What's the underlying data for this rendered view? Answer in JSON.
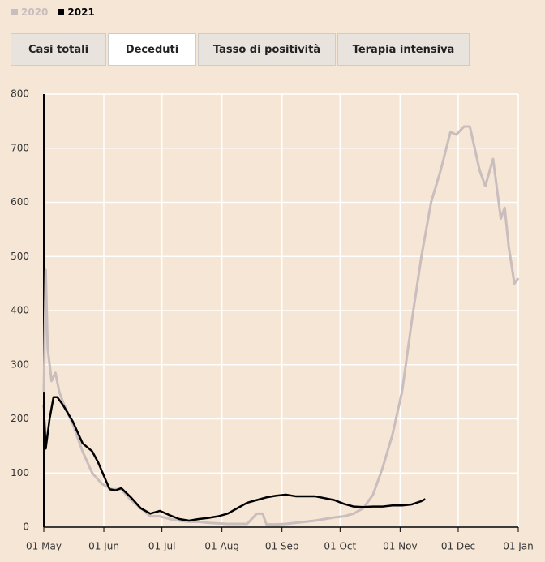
{
  "tabs": [
    "Casi totali",
    "Deceduti",
    "Tasso di positività",
    "Terapia intensiva"
  ],
  "chart_data": {
    "type": "line",
    "xlim": [
      0,
      245
    ],
    "xticks": [
      {
        "value": 0,
        "label": "01 May"
      },
      {
        "value": 31,
        "label": "01 Jun"
      },
      {
        "value": 61,
        "label": "01 Jul"
      },
      {
        "value": 92,
        "label": "01 Aug"
      },
      {
        "value": 123,
        "label": "01 Sep"
      },
      {
        "value": 153,
        "label": "01 Oct"
      },
      {
        "value": 184,
        "label": "01 Nov"
      },
      {
        "value": 214,
        "label": "01 Dec"
      },
      {
        "value": 245,
        "label": "01 Jan"
      }
    ],
    "ylim": [
      0,
      800
    ],
    "yticks": [
      0,
      100,
      200,
      300,
      400,
      500,
      600,
      700,
      800
    ],
    "grid": true,
    "series": [
      {
        "name": "2020",
        "color": "#c9bdbd",
        "x": [
          0,
          1,
          2,
          4,
          6,
          8,
          10,
          15,
          20,
          25,
          30,
          35,
          40,
          45,
          50,
          55,
          60,
          65,
          70,
          75,
          80,
          85,
          90,
          95,
          100,
          105,
          110,
          113,
          115,
          120,
          125,
          130,
          135,
          140,
          145,
          150,
          155,
          160,
          165,
          170,
          175,
          180,
          185,
          190,
          195,
          200,
          205,
          210,
          213,
          217,
          220,
          225,
          228,
          232,
          236,
          238,
          240,
          243,
          245
        ],
        "values": [
          250,
          475,
          330,
          270,
          285,
          250,
          230,
          190,
          140,
          100,
          80,
          70,
          70,
          50,
          35,
          20,
          20,
          15,
          12,
          10,
          10,
          8,
          7,
          6,
          6,
          6,
          25,
          25,
          5,
          5,
          6,
          8,
          10,
          12,
          15,
          18,
          20,
          25,
          35,
          60,
          110,
          170,
          250,
          380,
          500,
          600,
          660,
          730,
          725,
          740,
          740,
          660,
          630,
          680,
          570,
          590,
          520,
          450,
          460
        ]
      },
      {
        "name": "2021",
        "color": "#000000",
        "x": [
          0,
          1,
          3,
          5,
          7,
          10,
          15,
          20,
          25,
          28,
          31,
          34,
          37,
          40,
          45,
          50,
          55,
          60,
          65,
          70,
          75,
          80,
          85,
          90,
          95,
          100,
          105,
          110,
          115,
          120,
          125,
          130,
          140,
          150,
          155,
          160,
          165,
          170,
          175,
          180,
          185,
          190,
          195,
          197
        ],
        "values": [
          225,
          145,
          200,
          240,
          240,
          225,
          195,
          155,
          140,
          120,
          95,
          70,
          68,
          72,
          55,
          35,
          25,
          30,
          22,
          15,
          12,
          15,
          17,
          20,
          25,
          35,
          45,
          50,
          55,
          58,
          60,
          57,
          57,
          50,
          43,
          38,
          37,
          38,
          38,
          40,
          40,
          42,
          48,
          52
        ]
      }
    ]
  }
}
